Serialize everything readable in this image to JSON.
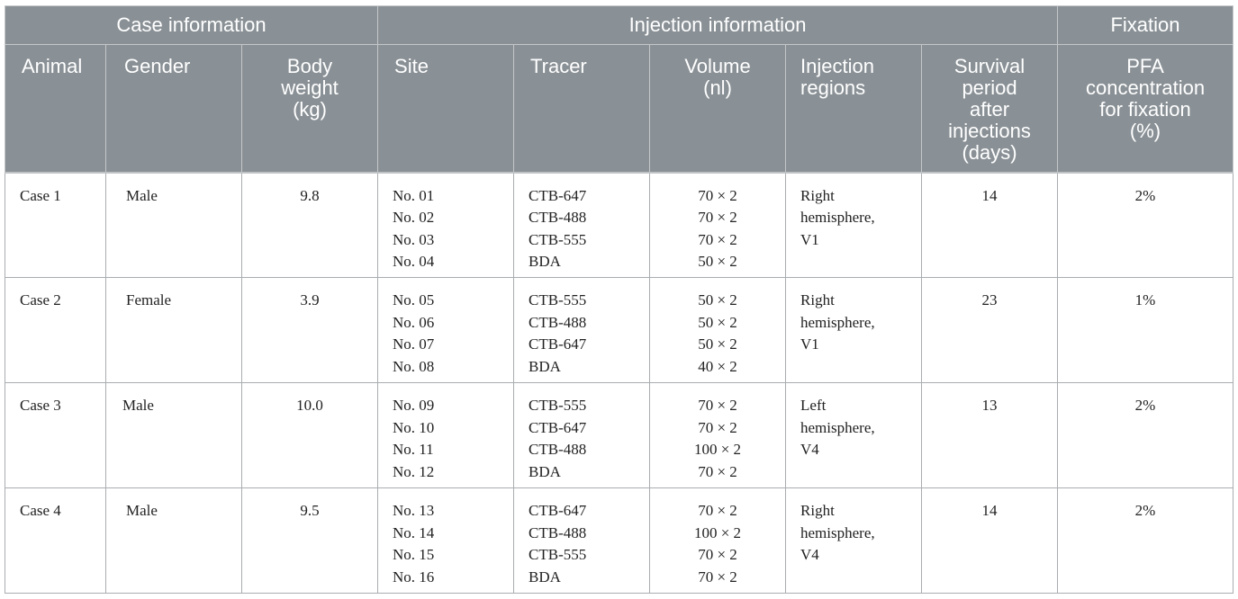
{
  "header": {
    "groups": [
      "Case information",
      "Injection information",
      "Fixation"
    ],
    "columns": {
      "animal": "Animal",
      "gender": "Gender",
      "body_weight": [
        "Body",
        "weight",
        "(kg)"
      ],
      "site": "Site",
      "tracer": "Tracer",
      "volume": [
        "Volume",
        "(nl)"
      ],
      "injection_regions": [
        "Injection",
        "regions"
      ],
      "survival": [
        "Survival",
        "period",
        "after",
        "injections",
        "(days)"
      ],
      "pfa": [
        "PFA",
        "concentration",
        "for fixation",
        "(%)"
      ]
    }
  },
  "rows": [
    {
      "animal": "Case 1",
      "gender": "Male",
      "weight": "9.8",
      "sites": [
        "No. 01",
        "No. 02",
        "No. 03",
        "No. 04"
      ],
      "tracers": [
        "CTB-647",
        "CTB-488",
        "CTB-555",
        "BDA"
      ],
      "volumes": [
        "70 × 2",
        "70 × 2",
        "70 × 2",
        "50 × 2"
      ],
      "regions": [
        "Right",
        "hemisphere,",
        "V1"
      ],
      "survival": "14",
      "pfa": "2%"
    },
    {
      "animal": "Case 2",
      "gender": "Female",
      "weight": "3.9",
      "sites": [
        "No. 05",
        "No. 06",
        "No. 07",
        "No. 08"
      ],
      "tracers": [
        "CTB-555",
        "CTB-488",
        "CTB-647",
        "BDA"
      ],
      "volumes": [
        "50 × 2",
        "50 × 2",
        "50 × 2",
        "40 × 2"
      ],
      "regions": [
        "Right",
        "hemisphere,",
        "V1"
      ],
      "survival": "23",
      "pfa": "1%"
    },
    {
      "animal": "Case 3",
      "gender": "Male",
      "weight": "10.0",
      "sites": [
        "No. 09",
        "No. 10",
        "No. 11",
        "No. 12"
      ],
      "tracers": [
        "CTB-555",
        "CTB-647",
        "CTB-488",
        "BDA"
      ],
      "volumes": [
        "70 × 2",
        "70 × 2",
        "100 × 2",
        "70 × 2"
      ],
      "regions": [
        "Left",
        "hemisphere,",
        "V4"
      ],
      "survival": "13",
      "pfa": "2%"
    },
    {
      "animal": "Case 4",
      "gender": "Male",
      "weight": "9.5",
      "sites": [
        "No. 13",
        "No. 14",
        "No. 15",
        "No. 16"
      ],
      "tracers": [
        "CTB-647",
        "CTB-488",
        "CTB-555",
        "BDA"
      ],
      "volumes": [
        "70 × 2",
        "100 × 2",
        "70 × 2",
        "70 × 2"
      ],
      "regions": [
        "Right",
        "hemisphere,",
        "V4"
      ],
      "survival": "14",
      "pfa": "2%"
    }
  ],
  "colors": {
    "header_bg": "#8a9196",
    "header_text": "#ffffff",
    "grid": "#a9adb0"
  }
}
